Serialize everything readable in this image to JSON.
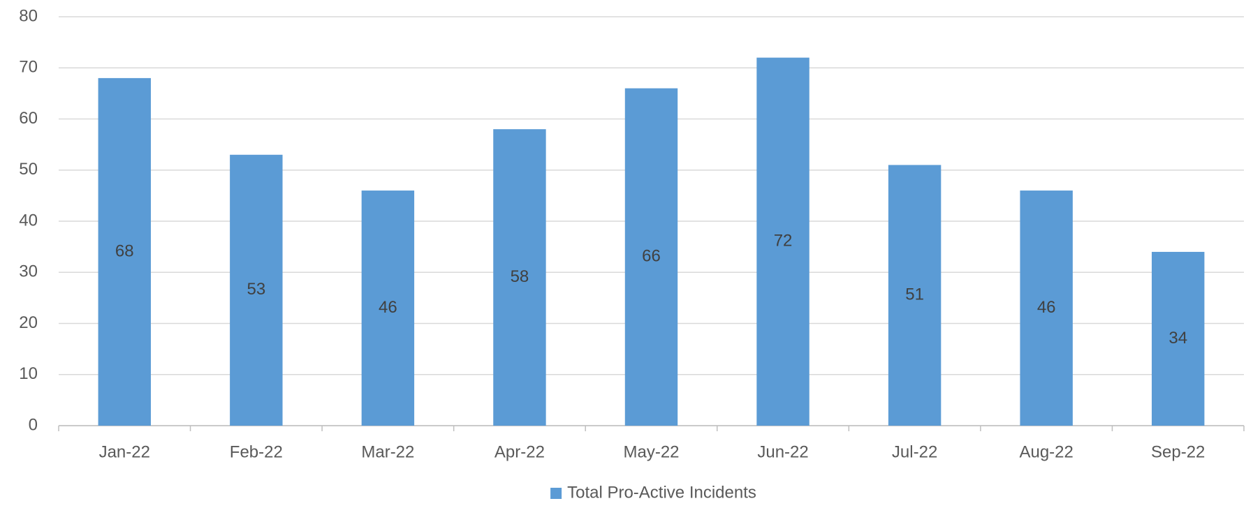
{
  "chart_data": {
    "type": "bar",
    "categories": [
      "Jan-22",
      "Feb-22",
      "Mar-22",
      "Apr-22",
      "May-22",
      "Jun-22",
      "Jul-22",
      "Aug-22",
      "Sep-22"
    ],
    "series": [
      {
        "name": "Total Pro-Active Incidents",
        "color": "#5b9bd5",
        "values": [
          68,
          53,
          46,
          58,
          66,
          72,
          51,
          46,
          34
        ]
      }
    ],
    "ylim": [
      0,
      80
    ],
    "yticks": [
      0,
      10,
      20,
      30,
      40,
      50,
      60,
      70,
      80
    ],
    "grid": true,
    "legend": "bottom",
    "data_labels": true
  }
}
